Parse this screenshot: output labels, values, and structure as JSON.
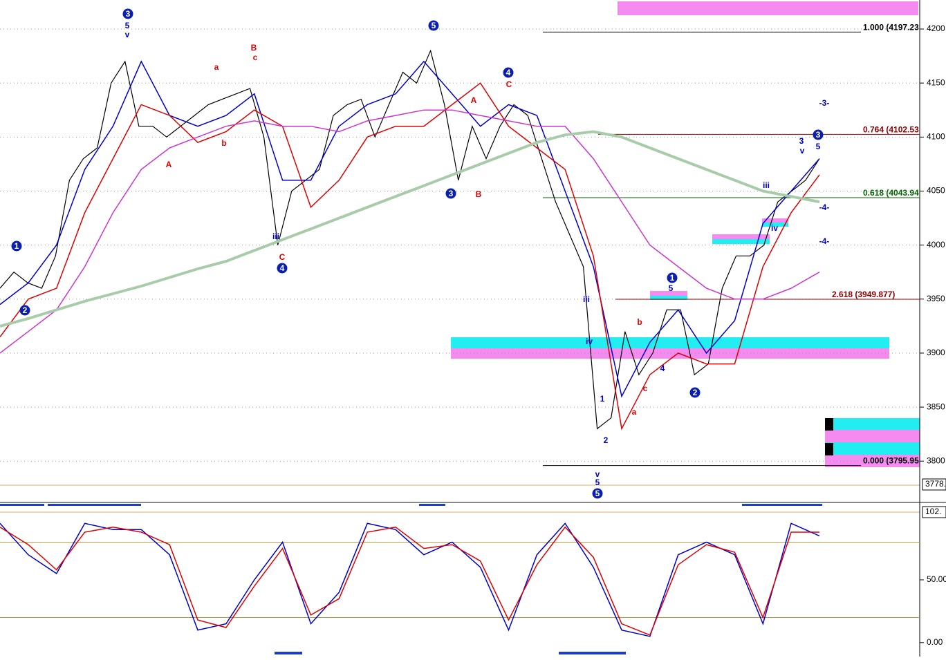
{
  "chart_data": [
    {
      "type": "line",
      "ylim": [
        3779.04,
        4226.88
      ],
      "yticks": [
        3800,
        3850,
        3900,
        3950,
        4000,
        4050,
        4100,
        4150,
        4200
      ],
      "grid": true,
      "axis_marker": "3778.",
      "series": [
        {
          "color": "#000000",
          "values": [
            3960,
            3975,
            3965,
            3960,
            3990,
            4060,
            4080,
            4090,
            4150,
            4170,
            4110,
            4110,
            4100,
            4110,
            4120,
            4130,
            4135,
            4140,
            4145,
            4100,
            4000,
            4050,
            4060,
            4070,
            4120,
            4130,
            4135,
            4100,
            4130,
            4160,
            4150,
            4180,
            4130,
            4060,
            4110,
            4080,
            4110,
            4130,
            4120,
            4080,
            4040,
            4010,
            3980,
            3830,
            3840,
            3920,
            3880,
            3900,
            3940,
            3940,
            3880,
            3890,
            3960,
            3990,
            3990,
            4000,
            4040,
            4050,
            4060,
            4080
          ]
        },
        {
          "color": "#0000cc",
          "values": [
            3945,
            3965,
            4000,
            4070,
            4110,
            4170,
            4120,
            4110,
            4120,
            4140,
            4060,
            4060,
            4110,
            4130,
            4140,
            4170,
            4140,
            4110,
            4130,
            4120,
            4050,
            3980,
            3860,
            3910,
            3940,
            3900,
            3930,
            4020,
            4050,
            4080
          ]
        },
        {
          "color": "#dd0000",
          "values": [
            3915,
            3950,
            3960,
            4030,
            4080,
            4130,
            4120,
            4095,
            4105,
            4125,
            4110,
            4035,
            4060,
            4100,
            4110,
            4110,
            4130,
            4150,
            4110,
            4090,
            4070,
            3990,
            3830,
            3880,
            3900,
            3890,
            3890,
            3980,
            4030,
            4065
          ]
        },
        {
          "color": "#cc33cc",
          "values": [
            3900,
            3920,
            3940,
            3980,
            4030,
            4070,
            4090,
            4100,
            4110,
            4115,
            4110,
            4110,
            4105,
            4115,
            4120,
            4125,
            4125,
            4120,
            4115,
            4110,
            4110,
            4080,
            4040,
            4000,
            3980,
            3960,
            3950,
            3950,
            3960,
            3975
          ]
        },
        {
          "color": "#a8ccaa",
          "values": [
            3925,
            3932,
            3940,
            3948,
            3955,
            3962,
            3970,
            3978,
            3985,
            3995,
            4005,
            4015,
            4025,
            4035,
            4045,
            4055,
            4065,
            4075,
            4085,
            4095,
            4102,
            4105,
            4100,
            4090,
            4080,
            4070,
            4060,
            4050,
            4045,
            4040
          ]
        }
      ],
      "levels": [
        {
          "value": 4197.23,
          "label": "1.000 (4197.23",
          "color": "#000000"
        },
        {
          "value": 4102.53,
          "label": "0.764 (4102.53",
          "color": "#8b0000"
        },
        {
          "value": 4043.94,
          "label": "0.618 (4043.94",
          "color": "#006400"
        },
        {
          "value": 3795.95,
          "label": "0.000 (3795.95",
          "color": "#000000"
        },
        {
          "value": 3949.877,
          "label": "2.618 (3949.877)",
          "color": "#8b0000"
        }
      ],
      "annotations": [
        {
          "text": "3",
          "color": "#0000cc",
          "circled": true
        },
        {
          "text": "5",
          "color": "#0000cc",
          "circled": false
        },
        {
          "text": "v",
          "color": "#0000cc",
          "circled": false
        },
        {
          "text": "5",
          "color": "#0000cc",
          "circled": true
        },
        {
          "text": "4",
          "color": "#0000cc",
          "circled": true
        },
        {
          "text": "C",
          "color": "#dd0000",
          "circled": false
        },
        {
          "text": "1",
          "color": "#0000cc",
          "circled": true
        },
        {
          "text": "2",
          "color": "#0000cc",
          "circled": true
        },
        {
          "text": "4",
          "color": "#0000cc",
          "circled": true
        },
        {
          "text": "C",
          "color": "#dd0000",
          "circled": false
        },
        {
          "text": "B",
          "color": "#dd0000",
          "circled": false
        },
        {
          "text": "c",
          "color": "#dd0000",
          "circled": false
        },
        {
          "text": "A",
          "color": "#dd0000",
          "circled": false
        },
        {
          "text": "a",
          "color": "#dd0000",
          "circled": false
        },
        {
          "text": "b",
          "color": "#dd0000",
          "circled": false
        },
        {
          "text": "3",
          "color": "#0000cc",
          "circled": true
        },
        {
          "text": "B",
          "color": "#dd0000",
          "circled": false
        },
        {
          "text": "A",
          "color": "#dd0000",
          "circled": false
        },
        {
          "text": "iii",
          "color": "#0000cc",
          "circled": false
        },
        {
          "text": "iii",
          "color": "#0000cc",
          "circled": false
        },
        {
          "text": "5",
          "color": "#0000cc",
          "circled": true
        },
        {
          "text": "v",
          "color": "#0000cc",
          "circled": false
        },
        {
          "text": "5",
          "color": "#0000cc",
          "circled": false
        },
        {
          "text": "1",
          "color": "#0000cc",
          "circled": true
        },
        {
          "text": "5",
          "color": "#0000cc",
          "circled": false
        },
        {
          "text": "2",
          "color": "#0000cc",
          "circled": true
        },
        {
          "text": "3",
          "color": "#0000cc",
          "circled": true
        },
        {
          "text": "3",
          "color": "#0000cc",
          "circled": false
        },
        {
          "text": "5",
          "color": "#0000cc",
          "circled": false
        },
        {
          "text": "v",
          "color": "#0000cc",
          "circled": false
        },
        {
          "text": "iv",
          "color": "#0000cc",
          "circled": false
        },
        {
          "text": "1",
          "color": "#0000cc",
          "circled": false
        },
        {
          "text": "2",
          "color": "#0000cc",
          "circled": false
        },
        {
          "text": "a",
          "color": "#dd0000",
          "circled": false
        },
        {
          "text": "c",
          "color": "#dd0000",
          "circled": false
        },
        {
          "text": "b",
          "color": "#dd0000",
          "circled": false
        },
        {
          "text": "4",
          "color": "#0000cc",
          "circled": false
        },
        {
          "text": "-3-",
          "color": "#0000cc",
          "circled": false
        },
        {
          "text": "-4-",
          "color": "#0000cc",
          "circled": false
        },
        {
          "text": "-4-",
          "color": "#0000cc",
          "circled": false
        },
        {
          "text": "iii",
          "color": "#0000cc",
          "circled": false
        },
        {
          "text": "iv",
          "color": "#0000cc",
          "circled": false
        }
      ]
    },
    {
      "type": "line",
      "ylim": [
        -10,
        110
      ],
      "yticks": [
        {
          "value": 0,
          "label": "0.00"
        },
        {
          "value": 50,
          "label": "50.00"
        }
      ],
      "hlines": [
        20,
        80
      ],
      "axis_marker": "102.",
      "series": [
        {
          "color": "#0000cc",
          "values": [
            95,
            70,
            55,
            95,
            90,
            90,
            70,
            10,
            15,
            50,
            80,
            15,
            40,
            95,
            90,
            70,
            80,
            60,
            10,
            70,
            95,
            60,
            10,
            5,
            70,
            80,
            70,
            15,
            95,
            85
          ]
        },
        {
          "color": "#dd0000",
          "values": [
            92,
            78,
            58,
            88,
            92,
            88,
            78,
            18,
            12,
            45,
            75,
            22,
            35,
            88,
            92,
            75,
            78,
            65,
            18,
            62,
            92,
            68,
            15,
            6,
            62,
            78,
            72,
            20,
            88,
            88
          ]
        }
      ]
    }
  ]
}
